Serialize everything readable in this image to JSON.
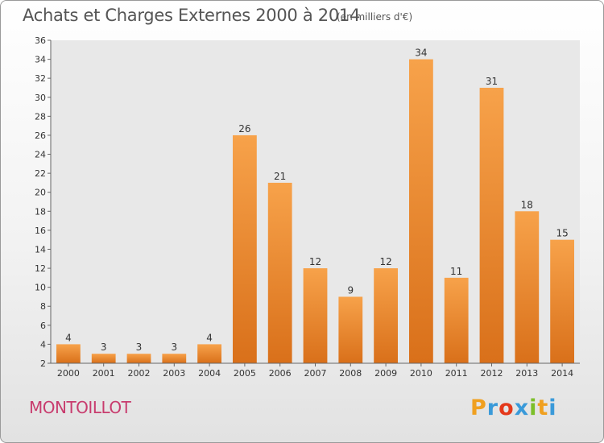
{
  "header": {
    "title": "Achats et Charges Externes 2000 à 2014",
    "subtitle": "(en milliers d'€)"
  },
  "footer": {
    "commune": "MONTOILLOT",
    "brand": {
      "letters": [
        "P",
        "r",
        "o",
        "x",
        "i",
        "t",
        "i"
      ],
      "colors": [
        "#f0a020",
        "#3a9ad9",
        "#e4391b",
        "#3a9ad9",
        "#7cbf2a",
        "#f0a020",
        "#3a9ad9"
      ]
    }
  },
  "chart_data": {
    "type": "bar",
    "title": "Achats et Charges Externes 2000 à 2014",
    "subtitle": "(en milliers d'€)",
    "categories": [
      "2000",
      "2001",
      "2002",
      "2003",
      "2004",
      "2005",
      "2006",
      "2007",
      "2008",
      "2009",
      "2010",
      "2011",
      "2012",
      "2013",
      "2014"
    ],
    "values": [
      4,
      3,
      3,
      3,
      4,
      26,
      21,
      12,
      9,
      12,
      34,
      11,
      31,
      18,
      15
    ],
    "xlabel": "",
    "ylabel": "",
    "ylim": [
      2,
      36
    ],
    "yticks": [
      2,
      4,
      6,
      8,
      10,
      12,
      14,
      16,
      18,
      20,
      22,
      24,
      26,
      28,
      30,
      32,
      34,
      36
    ],
    "grid": false,
    "bar_color": "#f28c28"
  }
}
